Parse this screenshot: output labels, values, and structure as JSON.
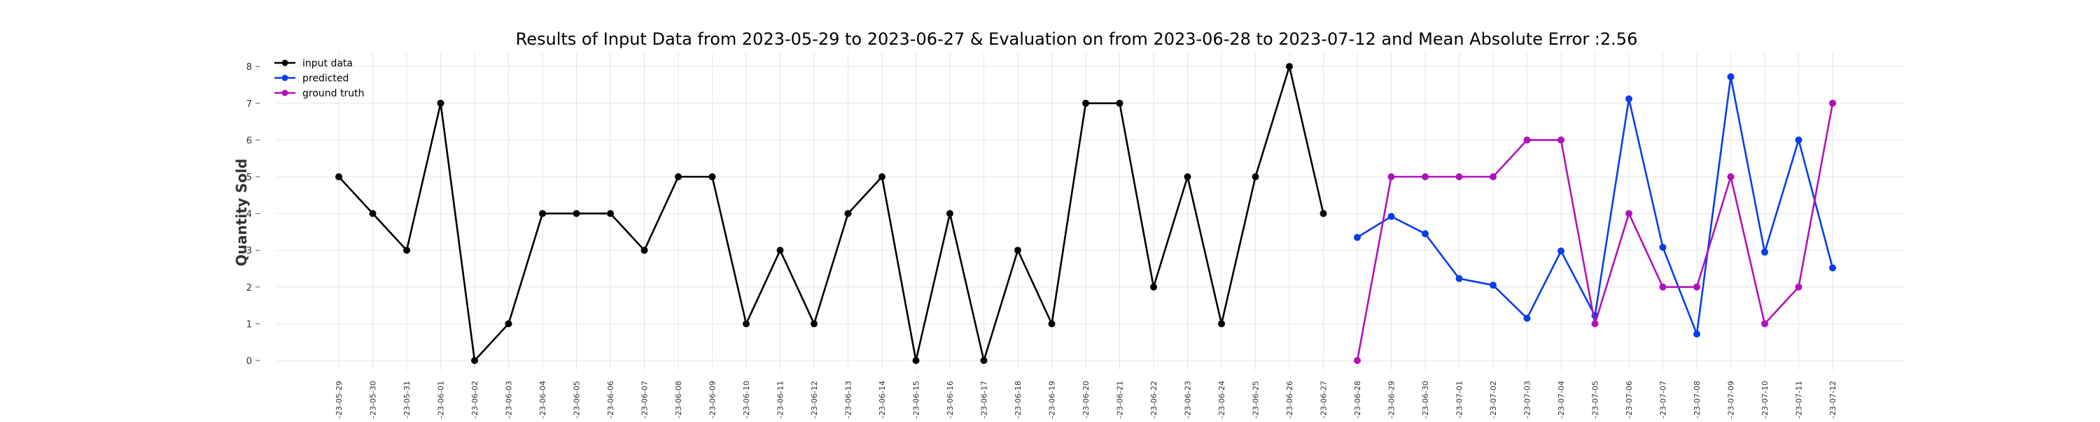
{
  "chart_data": {
    "type": "line",
    "title": "Results of Input Data from 2023-05-29 to 2023-06-27 & Evaluation on from 2023-06-28 to 2023-07-12 and Mean Absolute Error  :2.56",
    "xlabel": "",
    "ylabel": "Quantity Sold",
    "ylim": [
      0,
      8
    ],
    "yticks": [
      0,
      1,
      2,
      3,
      4,
      5,
      6,
      7,
      8
    ],
    "grid": true,
    "legend_position": "top-left",
    "x": [
      "2023-05-29",
      "2023-05-30",
      "2023-05-31",
      "2023-06-01",
      "2023-06-02",
      "2023-06-03",
      "2023-06-04",
      "2023-06-05",
      "2023-06-06",
      "2023-06-07",
      "2023-06-08",
      "2023-06-09",
      "2023-06-10",
      "2023-06-11",
      "2023-06-12",
      "2023-06-13",
      "2023-06-14",
      "2023-06-15",
      "2023-06-16",
      "2023-06-17",
      "2023-06-18",
      "2023-06-19",
      "2023-06-20",
      "2023-06-21",
      "2023-06-22",
      "2023-06-23",
      "2023-06-24",
      "2023-06-25",
      "2023-06-26",
      "2023-06-27",
      "2023-06-28",
      "2023-06-29",
      "2023-06-30",
      "2023-07-01",
      "2023-07-02",
      "2023-07-03",
      "2023-07-04",
      "2023-07-05",
      "2023-07-06",
      "2023-07-07",
      "2023-07-08",
      "2023-07-09",
      "2023-07-10",
      "2023-07-11",
      "2023-07-12"
    ],
    "xtick_labels": [
      "-23-05-29",
      "-23-05-30",
      "-23-05-31",
      "-23-06-01",
      "-23-06-02",
      "-23-06-03",
      "-23-06-04",
      "-23-06-05",
      "-23-06-06",
      "-23-06-07",
      "-23-06-08",
      "-23-06-09",
      "-23-06-10",
      "-23-06-11",
      "-23-06-12",
      "-23-06-13",
      "-23-06-14",
      "-23-06-15",
      "-23-06-16",
      "-23-06-17",
      "-23-06-18",
      "-23-06-19",
      "-23-06-20",
      "-23-06-21",
      "-23-06-22",
      "-23-06-23",
      "-23-06-24",
      "-23-06-25",
      "-23-06-26",
      "-23-06-27",
      "-23-06-28",
      "-23-06-29",
      "-23-06-30",
      "-23-07-01",
      "-23-07-02",
      "-23-07-03",
      "-23-07-04",
      "-23-07-05",
      "-23-07-06",
      "-23-07-07",
      "-23-07-08",
      "-23-07-09",
      "-23-07-10",
      "-23-07-11",
      "-23-07-12"
    ],
    "series": [
      {
        "name": "input data",
        "color": "#000000",
        "x": [
          "2023-05-29",
          "2023-05-30",
          "2023-05-31",
          "2023-06-01",
          "2023-06-02",
          "2023-06-03",
          "2023-06-04",
          "2023-06-05",
          "2023-06-06",
          "2023-06-07",
          "2023-06-08",
          "2023-06-09",
          "2023-06-10",
          "2023-06-11",
          "2023-06-12",
          "2023-06-13",
          "2023-06-14",
          "2023-06-15",
          "2023-06-16",
          "2023-06-17",
          "2023-06-18",
          "2023-06-19",
          "2023-06-20",
          "2023-06-21",
          "2023-06-22",
          "2023-06-23",
          "2023-06-24",
          "2023-06-25",
          "2023-06-26",
          "2023-06-27"
        ],
        "values": [
          5,
          4,
          3,
          7,
          0,
          1,
          4,
          4,
          4,
          3,
          5,
          5,
          1,
          3,
          1,
          4,
          5,
          0,
          4,
          0,
          3,
          1,
          7,
          7,
          2,
          5,
          1,
          5,
          8,
          4
        ]
      },
      {
        "name": "predicted",
        "color": "#0a3de8",
        "x": [
          "2023-06-28",
          "2023-06-29",
          "2023-06-30",
          "2023-07-01",
          "2023-07-02",
          "2023-07-03",
          "2023-07-04",
          "2023-07-05",
          "2023-07-06",
          "2023-07-07",
          "2023-07-08",
          "2023-07-09",
          "2023-07-10",
          "2023-07-11",
          "2023-07-12"
        ],
        "values": [
          3.35,
          3.92,
          3.45,
          2.23,
          2.05,
          1.15,
          2.98,
          1.22,
          7.12,
          3.08,
          0.72,
          7.72,
          2.95,
          6.0,
          2.52
        ]
      },
      {
        "name": "ground truth",
        "color": "#b012b8",
        "x": [
          "2023-06-28",
          "2023-06-29",
          "2023-06-30",
          "2023-07-01",
          "2023-07-02",
          "2023-07-03",
          "2023-07-04",
          "2023-07-05",
          "2023-07-06",
          "2023-07-07",
          "2023-07-08",
          "2023-07-09",
          "2023-07-10",
          "2023-07-11",
          "2023-07-12"
        ],
        "values": [
          0,
          5,
          5,
          5,
          5,
          6,
          6,
          1,
          4,
          2,
          2,
          5,
          1,
          2,
          7
        ]
      }
    ]
  }
}
